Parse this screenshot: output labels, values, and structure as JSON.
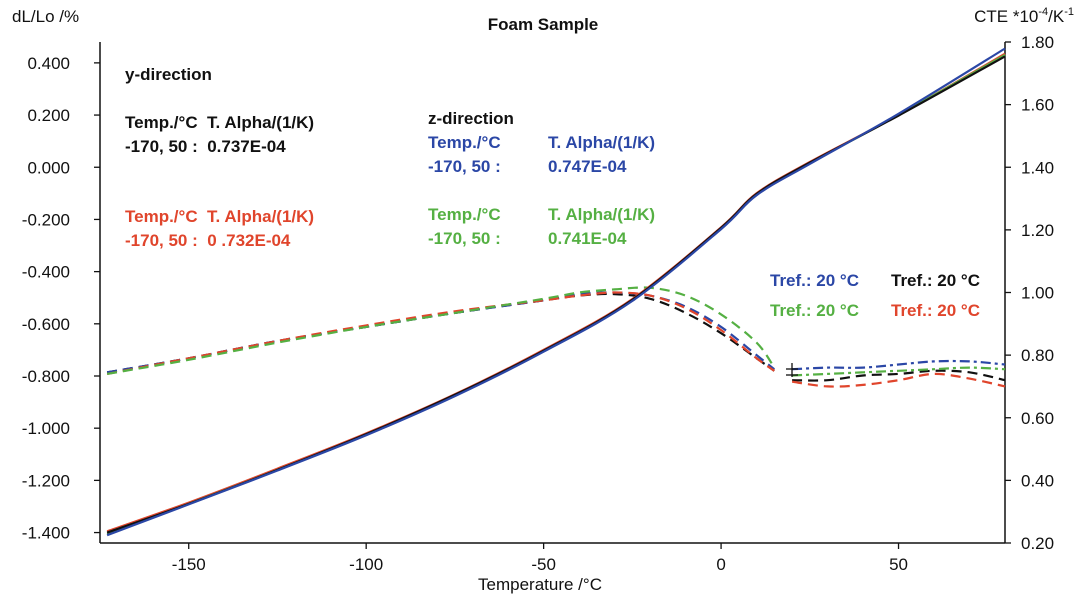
{
  "chart_data": {
    "type": "line",
    "title": "Foam Sample",
    "xlabel": "Temperature /°C",
    "ylabel": "dL/Lo /%",
    "y2label_prefix": "CTE *10",
    "y2label_exp1": "-4",
    "y2label_mid": "/K",
    "y2label_exp2": "-1",
    "xlim": [
      -175,
      80
    ],
    "ylim": [
      -1.44,
      0.48
    ],
    "y2lim": [
      0.2,
      1.8
    ],
    "x_ticks": [
      -150,
      -100,
      -50,
      0,
      50
    ],
    "x_tick_labels": [
      "-150",
      "-100",
      "-50",
      "0",
      "50"
    ],
    "y_ticks": [
      0.4,
      0.2,
      0.0,
      -0.2,
      -0.4,
      -0.6,
      -0.8,
      -1.0,
      -1.2,
      -1.4
    ],
    "y_tick_labels": [
      "0.400",
      "0.200",
      "0.000",
      "-0.200",
      "-0.400",
      "-0.600",
      "-0.800",
      "-1.000",
      "-1.200",
      "-1.400"
    ],
    "y2_ticks": [
      1.8,
      1.6,
      1.4,
      1.2,
      1.0,
      0.8,
      0.6,
      0.4,
      0.2
    ],
    "y2_tick_labels": [
      "1.80",
      "1.60",
      "1.40",
      "1.20",
      "1.00",
      "0.80",
      "0.60",
      "0.40",
      "0.20"
    ],
    "grid": false,
    "colors": {
      "black": "#111111",
      "blue": "#2b47a6",
      "red": "#e0452c",
      "green": "#55b043"
    },
    "dl_series": [
      {
        "color": "red",
        "x": [
          -173,
          -150,
          -125,
          -100,
          -75,
          -50,
          -25,
          0,
          10,
          25,
          50,
          80
        ],
        "y": [
          -1.395,
          -1.285,
          -1.155,
          -1.02,
          -0.87,
          -0.7,
          -0.505,
          -0.23,
          -0.1,
          0.02,
          0.2,
          0.435
        ]
      },
      {
        "color": "green",
        "x": [
          -173,
          -150,
          -125,
          -100,
          -75,
          -50,
          -25,
          0,
          10,
          25,
          50,
          80
        ],
        "y": [
          -1.405,
          -1.29,
          -1.16,
          -1.025,
          -0.875,
          -0.705,
          -0.51,
          -0.235,
          -0.105,
          0.015,
          0.2,
          0.43
        ]
      },
      {
        "color": "black",
        "x": [
          -173,
          -150,
          -125,
          -100,
          -75,
          -50,
          -25,
          0,
          10,
          25,
          50,
          80
        ],
        "y": [
          -1.4,
          -1.29,
          -1.16,
          -1.023,
          -0.872,
          -0.703,
          -0.508,
          -0.232,
          -0.102,
          0.018,
          0.198,
          0.425
        ]
      },
      {
        "color": "blue",
        "x": [
          -173,
          -150,
          -125,
          -100,
          -75,
          -50,
          -25,
          0,
          10,
          25,
          50,
          80
        ],
        "y": [
          -1.41,
          -1.292,
          -1.162,
          -1.027,
          -0.877,
          -0.707,
          -0.512,
          -0.237,
          -0.107,
          0.013,
          0.205,
          0.455
        ]
      }
    ],
    "cte_series": [
      {
        "color": "black",
        "dash": "10,6",
        "x": [
          -173,
          -150,
          -125,
          -100,
          -75,
          -50,
          -40,
          -30,
          -20,
          -10,
          0,
          10,
          15
        ],
        "y": [
          0.745,
          0.79,
          0.845,
          0.89,
          0.935,
          0.975,
          0.99,
          0.995,
          0.98,
          0.935,
          0.87,
          0.79,
          0.75
        ]
      },
      {
        "color": "black",
        "dash": "10,6",
        "x": [
          20,
          30,
          40,
          50,
          60,
          70,
          80
        ],
        "y": [
          0.72,
          0.72,
          0.735,
          0.74,
          0.75,
          0.745,
          0.72
        ]
      },
      {
        "color": "blue",
        "dash": "10,6",
        "x": [
          -173,
          -150,
          -125,
          -100,
          -75,
          -50,
          -40,
          -30,
          -20,
          -10,
          0,
          10,
          15
        ],
        "y": [
          0.745,
          0.79,
          0.845,
          0.89,
          0.935,
          0.975,
          0.995,
          1.0,
          0.99,
          0.955,
          0.89,
          0.8,
          0.755
        ]
      },
      {
        "color": "blue",
        "dash": "10,4,3,4",
        "x": [
          20,
          30,
          40,
          50,
          60,
          70,
          80
        ],
        "y": [
          0.755,
          0.76,
          0.76,
          0.77,
          0.78,
          0.78,
          0.77
        ]
      },
      {
        "color": "red",
        "dash": "10,6",
        "x": [
          -173,
          -150,
          -125,
          -100,
          -75,
          -50,
          -40,
          -30,
          -20,
          -10,
          0,
          10,
          15
        ],
        "y": [
          0.74,
          0.79,
          0.845,
          0.895,
          0.94,
          0.975,
          0.99,
          1.0,
          0.99,
          0.95,
          0.88,
          0.79,
          0.75
        ]
      },
      {
        "color": "red",
        "dash": "10,6",
        "x": [
          20,
          30,
          40,
          50,
          60,
          70,
          80
        ],
        "y": [
          0.715,
          0.7,
          0.705,
          0.72,
          0.74,
          0.725,
          0.7
        ]
      },
      {
        "color": "green",
        "dash": "10,6",
        "x": [
          -173,
          -150,
          -125,
          -100,
          -75,
          -50,
          -40,
          -30,
          -20,
          -10,
          0,
          10,
          15
        ],
        "y": [
          0.74,
          0.785,
          0.84,
          0.89,
          0.935,
          0.98,
          1.0,
          1.01,
          1.015,
          0.99,
          0.93,
          0.84,
          0.76
        ]
      },
      {
        "color": "green",
        "dash": "10,4,3,4",
        "x": [
          20,
          30,
          40,
          50,
          60,
          70,
          80
        ],
        "y": [
          0.735,
          0.74,
          0.745,
          0.75,
          0.755,
          0.76,
          0.755
        ]
      }
    ],
    "annotations": {
      "y_direction": "y-direction",
      "black_header": "Temp./°C  T. Alpha/(1/K)",
      "black_value": "-170, 50 :  0.737E-04",
      "red_header": "Temp./°C  T. Alpha/(1/K)",
      "red_value": "-170, 50 :  0 .732E-04",
      "z_direction": "z-direction",
      "blue_header_temp": "Temp./°C",
      "blue_header_alpha": "T. Alpha/(1/K)",
      "blue_value_temp": "-170, 50 :",
      "blue_value_alpha": "0.747E-04",
      "green_header_temp": "Temp./°C",
      "green_header_alpha": "T. Alpha/(1/K)",
      "green_value_temp": "-170, 50 :",
      "green_value_alpha": "0.741E-04",
      "tref_blue": "Tref.: 20 °C",
      "tref_black": "Tref.: 20 °C",
      "tref_green": "Tref.: 20 °C",
      "tref_red": "Tref.: 20 °C"
    }
  }
}
